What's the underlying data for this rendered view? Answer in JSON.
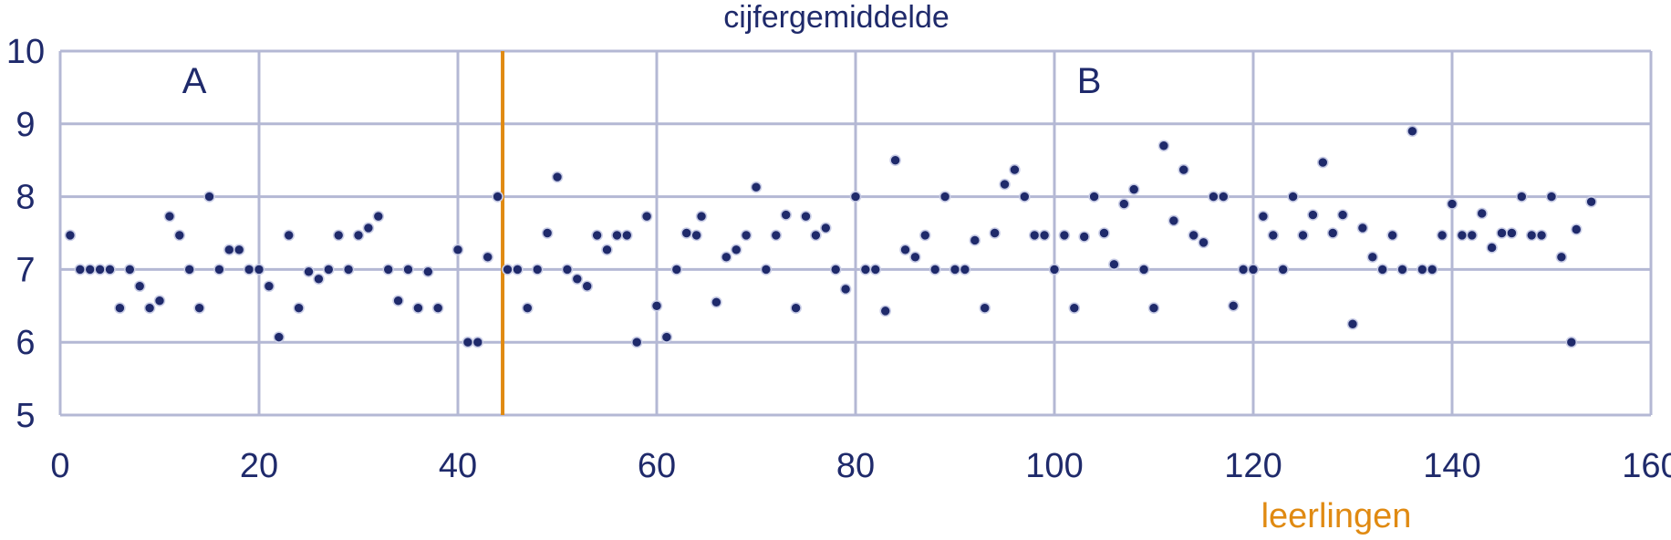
{
  "chart_data": {
    "type": "scatter",
    "title": "cijfergemiddelde",
    "xlabel": "leerlingen",
    "ylabel": "",
    "xlim": [
      0,
      160
    ],
    "ylim": [
      5,
      10
    ],
    "xticks": [
      "0",
      "20",
      "40",
      "60",
      "80",
      "100",
      "120",
      "140",
      "160"
    ],
    "yticks": [
      "5",
      "6",
      "7",
      "8",
      "9",
      "10"
    ],
    "grid": true,
    "annotations": [
      {
        "text": "A",
        "x": 13.5,
        "y": 9.6
      },
      {
        "text": "B",
        "x": 103.5,
        "y": 9.6
      }
    ],
    "vline": {
      "x": 44.5
    },
    "colors": {
      "grid": "#b4b8d4",
      "text": "#1f2a6b",
      "vline": "#e08a12",
      "xlabel": "#e08a12",
      "marker_fill": "#1f2a6b",
      "marker_stroke": "#c9cde6"
    },
    "points": [
      [
        1,
        7.47
      ],
      [
        2,
        7.0
      ],
      [
        3,
        7.0
      ],
      [
        4,
        7.0
      ],
      [
        5,
        7.0
      ],
      [
        6,
        6.47
      ],
      [
        7,
        7.0
      ],
      [
        8,
        6.77
      ],
      [
        9,
        6.47
      ],
      [
        10,
        6.57
      ],
      [
        11,
        7.73
      ],
      [
        12,
        7.47
      ],
      [
        13,
        7.0
      ],
      [
        14,
        6.47
      ],
      [
        15,
        8.0
      ],
      [
        16,
        7.0
      ],
      [
        17,
        7.27
      ],
      [
        18,
        7.27
      ],
      [
        19,
        7.0
      ],
      [
        20,
        7.0
      ],
      [
        21,
        6.77
      ],
      [
        22,
        6.07
      ],
      [
        23,
        7.47
      ],
      [
        24,
        6.47
      ],
      [
        25,
        6.97
      ],
      [
        26,
        6.87
      ],
      [
        27,
        7.0
      ],
      [
        28,
        7.47
      ],
      [
        29,
        7.0
      ],
      [
        30,
        7.47
      ],
      [
        31,
        7.57
      ],
      [
        32,
        7.73
      ],
      [
        33,
        7.0
      ],
      [
        34,
        6.57
      ],
      [
        35,
        7.0
      ],
      [
        36,
        6.47
      ],
      [
        37,
        6.97
      ],
      [
        38,
        6.47
      ],
      [
        40,
        7.27
      ],
      [
        41,
        6.0
      ],
      [
        42,
        6.0
      ],
      [
        43,
        7.17
      ],
      [
        44,
        8.0
      ],
      [
        45,
        7.0
      ],
      [
        46,
        7.0
      ],
      [
        47,
        6.47
      ],
      [
        48,
        7.0
      ],
      [
        49,
        7.5
      ],
      [
        50,
        8.27
      ],
      [
        51,
        7.0
      ],
      [
        52,
        6.87
      ],
      [
        53,
        6.77
      ],
      [
        54,
        7.47
      ],
      [
        55,
        7.27
      ],
      [
        56,
        7.47
      ],
      [
        57,
        7.47
      ],
      [
        58,
        6.0
      ],
      [
        59,
        7.73
      ],
      [
        60,
        6.5
      ],
      [
        61,
        6.07
      ],
      [
        62,
        7.0
      ],
      [
        63,
        7.5
      ],
      [
        64,
        7.47
      ],
      [
        64.5,
        7.73
      ],
      [
        66,
        6.55
      ],
      [
        67,
        7.17
      ],
      [
        68,
        7.27
      ],
      [
        69,
        7.47
      ],
      [
        70,
        8.13
      ],
      [
        71,
        7.0
      ],
      [
        72,
        7.47
      ],
      [
        73,
        7.75
      ],
      [
        74,
        6.47
      ],
      [
        75,
        7.73
      ],
      [
        76,
        7.47
      ],
      [
        77,
        7.57
      ],
      [
        78,
        7.0
      ],
      [
        79,
        6.73
      ],
      [
        80,
        8.0
      ],
      [
        81,
        7.0
      ],
      [
        82,
        7.0
      ],
      [
        83,
        6.43
      ],
      [
        84,
        8.5
      ],
      [
        85,
        7.27
      ],
      [
        86,
        7.17
      ],
      [
        87,
        7.47
      ],
      [
        88,
        7.0
      ],
      [
        89,
        8.0
      ],
      [
        90,
        7.0
      ],
      [
        91,
        7.0
      ],
      [
        92,
        7.4
      ],
      [
        93,
        6.47
      ],
      [
        94,
        7.5
      ],
      [
        95,
        8.17
      ],
      [
        96,
        8.37
      ],
      [
        97,
        8.0
      ],
      [
        98,
        7.47
      ],
      [
        99,
        7.47
      ],
      [
        100,
        7.0
      ],
      [
        101,
        7.47
      ],
      [
        102,
        6.47
      ],
      [
        103,
        7.45
      ],
      [
        104,
        8.0
      ],
      [
        105,
        7.5
      ],
      [
        106,
        7.07
      ],
      [
        107,
        7.9
      ],
      [
        108,
        8.1
      ],
      [
        109,
        7.0
      ],
      [
        110,
        6.47
      ],
      [
        111,
        8.7
      ],
      [
        112,
        7.67
      ],
      [
        113,
        8.37
      ],
      [
        114,
        7.47
      ],
      [
        115,
        7.37
      ],
      [
        116,
        8.0
      ],
      [
        117,
        8.0
      ],
      [
        118,
        6.5
      ],
      [
        119,
        7.0
      ],
      [
        120,
        7.0
      ],
      [
        121,
        7.73
      ],
      [
        122,
        7.47
      ],
      [
        123,
        7.0
      ],
      [
        124,
        8.0
      ],
      [
        125,
        7.47
      ],
      [
        126,
        7.75
      ],
      [
        127,
        8.47
      ],
      [
        128,
        7.5
      ],
      [
        129,
        7.75
      ],
      [
        130,
        6.25
      ],
      [
        131,
        7.57
      ],
      [
        132,
        7.17
      ],
      [
        133,
        7.0
      ],
      [
        134,
        7.47
      ],
      [
        135,
        7.0
      ],
      [
        136,
        8.9
      ],
      [
        137,
        7.0
      ],
      [
        138,
        7.0
      ],
      [
        139,
        7.47
      ],
      [
        140,
        7.9
      ],
      [
        141,
        7.47
      ],
      [
        142,
        7.47
      ],
      [
        143,
        7.77
      ],
      [
        144,
        7.3
      ],
      [
        145,
        7.5
      ],
      [
        146,
        7.5
      ],
      [
        147,
        8.0
      ],
      [
        148,
        7.47
      ],
      [
        149,
        7.47
      ],
      [
        150,
        8.0
      ],
      [
        151,
        7.17
      ],
      [
        152,
        6.0
      ],
      [
        152.5,
        7.55
      ],
      [
        154,
        7.93
      ]
    ]
  }
}
